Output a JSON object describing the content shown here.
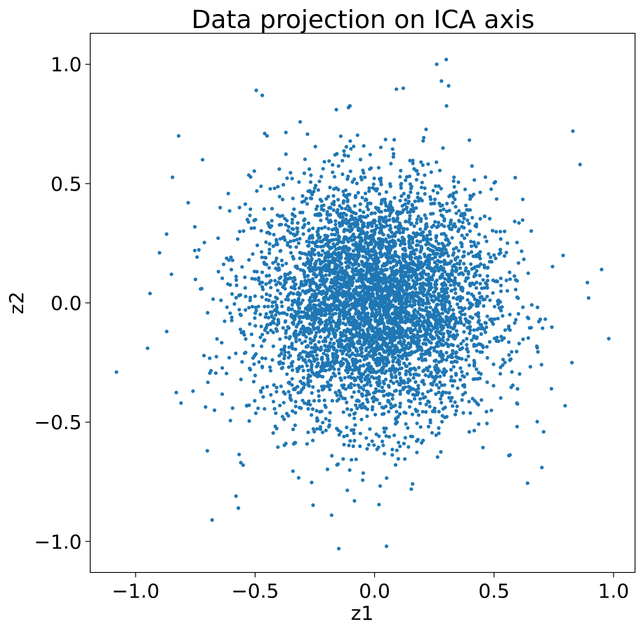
{
  "chart_data": {
    "type": "scatter",
    "title": "Data projection on ICA axis",
    "xlabel": "z1",
    "ylabel": "z2",
    "xlim": [
      -1.19,
      1.09
    ],
    "ylim": [
      -1.13,
      1.13
    ],
    "xticks": [
      -1.0,
      -0.5,
      0.0,
      0.5,
      1.0
    ],
    "xtick_labels": [
      "−1.0",
      "−0.5",
      "0.0",
      "0.5",
      "1.0"
    ],
    "yticks": [
      -1.0,
      -0.5,
      0.0,
      0.5,
      1.0
    ],
    "ytick_labels": [
      "−1.0",
      "−0.5",
      "0.0",
      "0.5",
      "1.0"
    ],
    "grid": false,
    "legend": "none",
    "marker_color": "#1f77b4",
    "point_count_estimate": 5000,
    "distribution": "roughly isotropic 2D Gaussian centered near (0, 0), std about 0.25 in each direction",
    "x": [
      -1.08,
      -0.95,
      -0.9,
      -0.87,
      -0.85,
      -0.82,
      -0.81,
      -0.78,
      -0.76,
      -0.72,
      -0.7,
      -0.68,
      -0.67,
      -0.58,
      -0.57,
      -0.55,
      -0.47,
      -0.46,
      -0.45,
      -0.18,
      -0.16,
      -0.15,
      0.05,
      0.12,
      0.26,
      0.28,
      0.3,
      0.31,
      0.7,
      0.74,
      0.83,
      0.86,
      0.95,
      0.98,
      0.0,
      0.02,
      -0.05,
      0.08,
      -0.1,
      0.12,
      -0.2,
      0.25,
      -0.3,
      0.35,
      0.15,
      -0.12,
      0.4,
      -0.4,
      0.5,
      -0.5
    ],
    "y": [
      -0.29,
      -0.19,
      0.21,
      -0.12,
      0.12,
      0.7,
      -0.42,
      0.42,
      -0.37,
      0.6,
      -0.62,
      -0.91,
      -0.45,
      -0.81,
      -0.86,
      -0.68,
      0.87,
      0.71,
      0.7,
      -0.89,
      0.81,
      -1.03,
      -1.02,
      0.9,
      1.0,
      0.93,
      1.02,
      0.91,
      -0.69,
      -0.36,
      0.72,
      0.58,
      0.14,
      -0.15,
      0.0,
      0.05,
      -0.04,
      0.1,
      -0.12,
      0.2,
      0.15,
      -0.2,
      0.05,
      0.3,
      -0.3,
      0.35,
      -0.1,
      -0.25,
      0.2,
      0.1
    ]
  }
}
